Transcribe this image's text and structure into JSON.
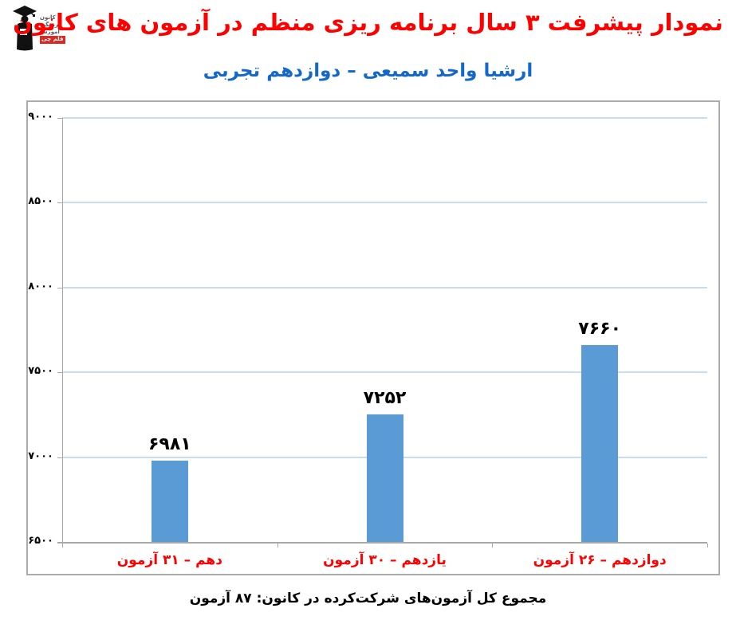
{
  "header": {
    "title": "نمودار پیشرفت ۳ سال برنامه ریزی منظم در آزمون های کانون",
    "subtitle": "ارشیا واحد سمیعی – دوازدهم تجربی",
    "logo": {
      "line1": "کانون",
      "line2": "فرهنگی",
      "line3": "آموزش",
      "badge": "قلم چی"
    }
  },
  "footer": {
    "caption": "مجموع کل آزمون‌های شرکت‌کرده در کانون:  ۸۷ آزمون"
  },
  "chart_data": {
    "type": "bar",
    "title": "نمودار پیشرفت ۳ سال برنامه ریزی منظم در آزمون های کانون",
    "subtitle": "ارشیا واحد سمیعی – دوازدهم تجربی",
    "categories": [
      "دهم – ۳۱ آزمون",
      "یازدهم – ۳۰ آزمون",
      "دوازدهم – ۲۶ آزمون"
    ],
    "values": [
      6981,
      7252,
      7660
    ],
    "value_labels": [
      "۶۹۸۱",
      "۷۲۵۲",
      "۷۶۶۰"
    ],
    "ylim": [
      6500,
      9000
    ],
    "y_ticks": [
      {
        "value": 6500,
        "label": "۶۵۰۰"
      },
      {
        "value": 7000,
        "label": "۷۰۰۰"
      },
      {
        "value": 7500,
        "label": "۷۵۰۰"
      },
      {
        "value": 8000,
        "label": "۸۰۰۰"
      },
      {
        "value": 8500,
        "label": "۸۵۰۰"
      },
      {
        "value": 9000,
        "label": "۹۰۰۰"
      }
    ],
    "grid": true,
    "legend": false,
    "bar_color": "#5b9bd5",
    "grid_color": "#c9ddf0",
    "axis_color": "#a8a8a8",
    "category_color": "#fe0000",
    "value_label_color": "#000000"
  },
  "colors": {
    "title": "#fe0000",
    "subtitle": "#1468c8",
    "caption": "#000000"
  }
}
